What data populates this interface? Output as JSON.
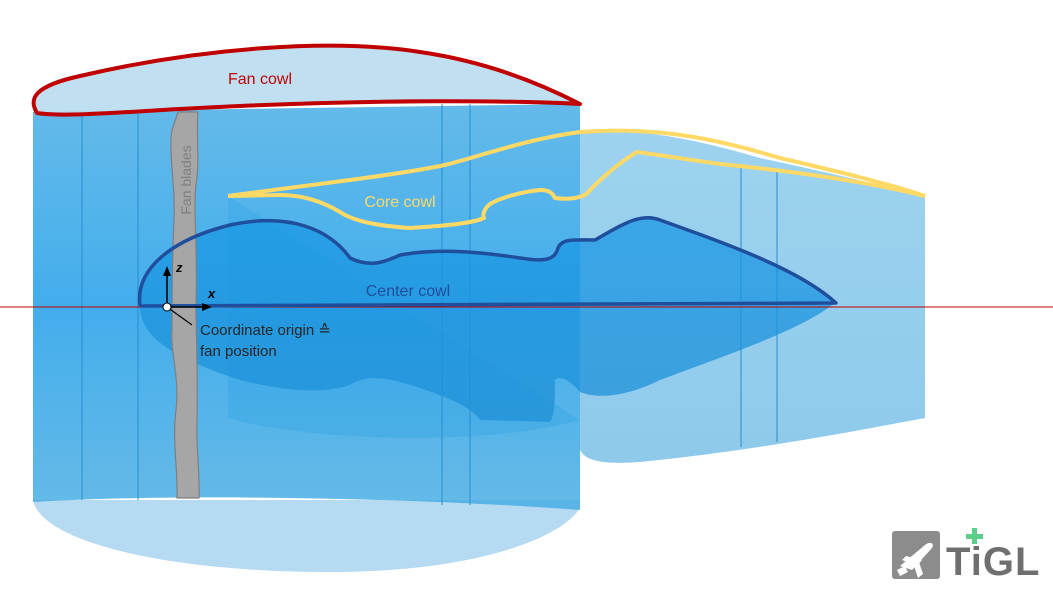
{
  "labels": {
    "fan_cowl": "Fan cowl",
    "core_cowl": "Core cowl",
    "center_cowl": "Center cowl",
    "fan_blades": "Fan blades",
    "axis_x": "x",
    "axis_z": "z",
    "origin_line1": "Coordinate origin ≙",
    "origin_line2": "fan position"
  },
  "logo": {
    "text": "TiGL",
    "icon": "airplane-icon"
  },
  "colors": {
    "fan_cowl_outline": "#c00000",
    "core_cowl_outline": "#ffd966",
    "center_cowl_outline": "#1f4e9c",
    "axis_line": "#c00000",
    "fan_blades": "#a6a6a6",
    "logo_cross": "#5bd08a"
  }
}
